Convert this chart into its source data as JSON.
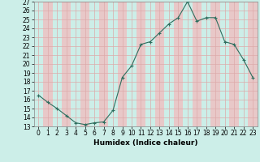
{
  "xlabel": "Humidex (Indice chaleur)",
  "x": [
    0,
    1,
    2,
    3,
    4,
    5,
    6,
    7,
    8,
    9,
    10,
    11,
    12,
    13,
    14,
    15,
    16,
    17,
    18,
    19,
    20,
    21,
    22,
    23
  ],
  "y": [
    16.5,
    15.7,
    15.0,
    14.2,
    13.4,
    13.2,
    13.4,
    13.5,
    14.8,
    18.5,
    19.8,
    22.2,
    22.5,
    23.5,
    24.5,
    25.2,
    27.0,
    24.8,
    25.2,
    25.2,
    22.5,
    22.2,
    20.5,
    18.5
  ],
  "line_color": "#2d6e5e",
  "marker_size": 2.5,
  "bg_color": "#cceee8",
  "grid_minor_color": "#e8c8c8",
  "grid_major_color": "#ddaaaa",
  "ylim": [
    13,
    27
  ],
  "xlim": [
    -0.5,
    23.5
  ],
  "yticks": [
    13,
    14,
    15,
    16,
    17,
    18,
    19,
    20,
    21,
    22,
    23,
    24,
    25,
    26,
    27
  ],
  "xticks": [
    0,
    1,
    2,
    3,
    4,
    5,
    6,
    7,
    8,
    9,
    10,
    11,
    12,
    13,
    14,
    15,
    16,
    17,
    18,
    19,
    20,
    21,
    22,
    23
  ],
  "tick_fontsize": 5.5,
  "xlabel_fontsize": 6.5
}
